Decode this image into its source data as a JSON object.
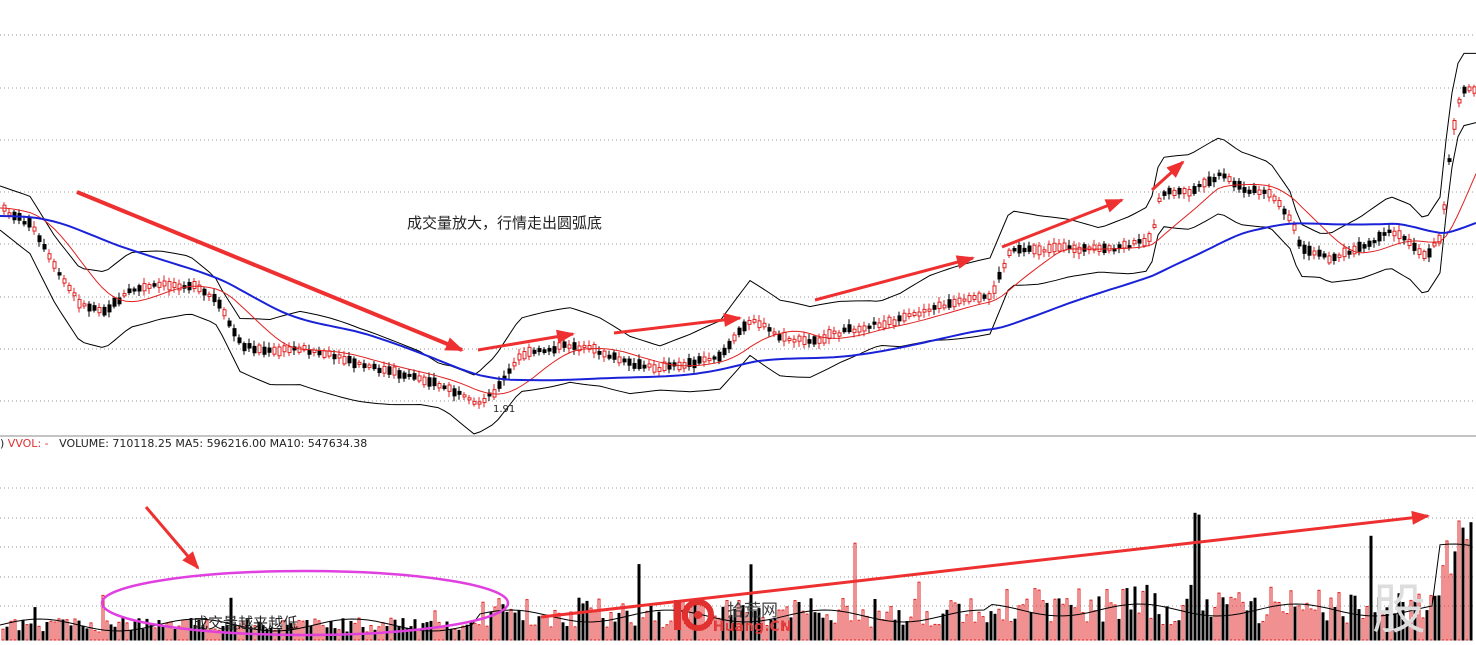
{
  "chart_data": [
    {
      "type": "candlestick",
      "title": "",
      "price_label_low": "1.91",
      "annotation": "成交量放大，行情走出圆弧底",
      "overlays": [
        "moving-average-blue",
        "moving-average-red",
        "bollinger-bands-black"
      ],
      "grid": "horizontal dotted",
      "colors": {
        "up": "#e02020",
        "down": "#000000",
        "ma_long": "#1a22d8",
        "ma_short": "#e02020",
        "band": "#000000",
        "arrow": "#ee3030"
      }
    },
    {
      "type": "bar",
      "title": "VOL",
      "header": {
        "prefix": ")",
        "name": "VVOL: -",
        "volume": "VOLUME: 710118.25",
        "ma5": "MA5: 596216.00",
        "ma10": "MA10: 547634.38"
      },
      "annotation": "成交量越来越低",
      "colors": {
        "up": "#e02020",
        "down": "#000000",
        "ellipse": "#e040e0",
        "arrow": "#ee3030"
      }
    }
  ],
  "watermark": {
    "cn": "拾荒网",
    "en": "Huang.CN",
    "corner": "股"
  }
}
